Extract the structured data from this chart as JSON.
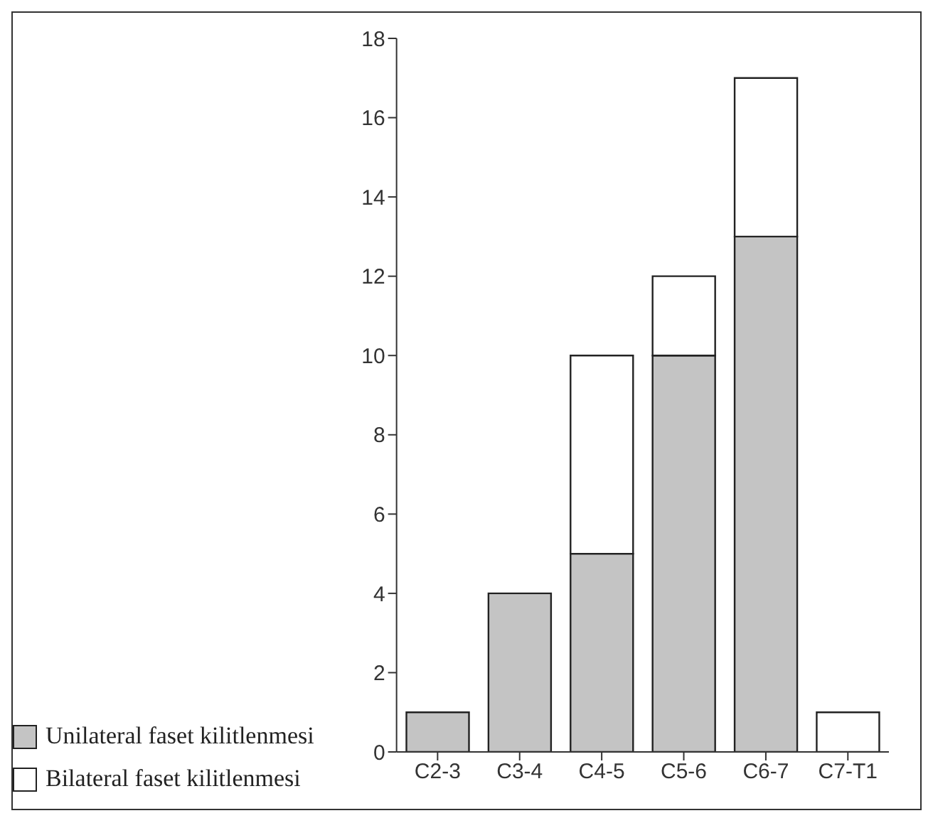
{
  "chart_data": {
    "type": "bar",
    "stacked": true,
    "categories": [
      "C2-3",
      "C3-4",
      "C4-5",
      "C5-6",
      "C6-7",
      "C7-T1"
    ],
    "series": [
      {
        "name": "Unilateral faset kilitlenmesi",
        "color": "#c4c4c4",
        "values": [
          1,
          4,
          5,
          10,
          13,
          0
        ]
      },
      {
        "name": "Bilateral faset kilitlenmesi",
        "color": "#ffffff",
        "values": [
          0,
          0,
          5,
          2,
          4,
          1
        ]
      }
    ],
    "ylim": [
      0,
      18
    ],
    "yticks": [
      0,
      2,
      4,
      6,
      8,
      10,
      12,
      14,
      16,
      18
    ],
    "grid": false,
    "legend": "bottom left"
  }
}
